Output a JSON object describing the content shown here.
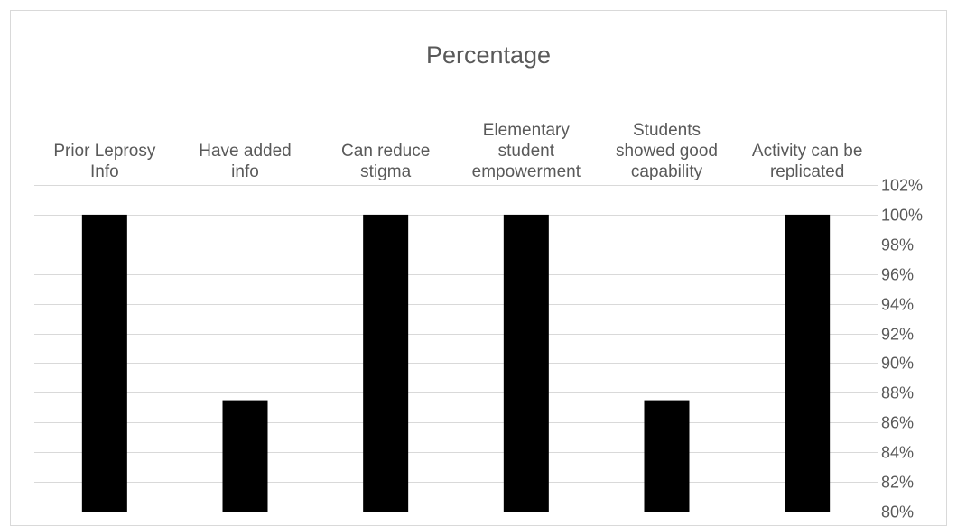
{
  "chart_data": {
    "type": "bar",
    "title": "Percentage",
    "categories": [
      [
        "Prior Leprosy",
        "Info"
      ],
      [
        "Have added",
        "info"
      ],
      [
        "Can reduce",
        "stigma"
      ],
      [
        "Elementary",
        "student",
        "empowerment"
      ],
      [
        "Students",
        "showed good",
        "capability"
      ],
      [
        "Activity can be",
        "replicated"
      ]
    ],
    "values": [
      100,
      87.5,
      100,
      100,
      87.5,
      100
    ],
    "ylim": [
      80,
      102
    ],
    "ytick_step": 2,
    "ytick_suffix": "%",
    "y_axis_position": "right",
    "x_labels_position": "top",
    "grid": true,
    "bar_color": "#000000",
    "grid_color": "#d9d9d9",
    "text_color": "#595959"
  }
}
